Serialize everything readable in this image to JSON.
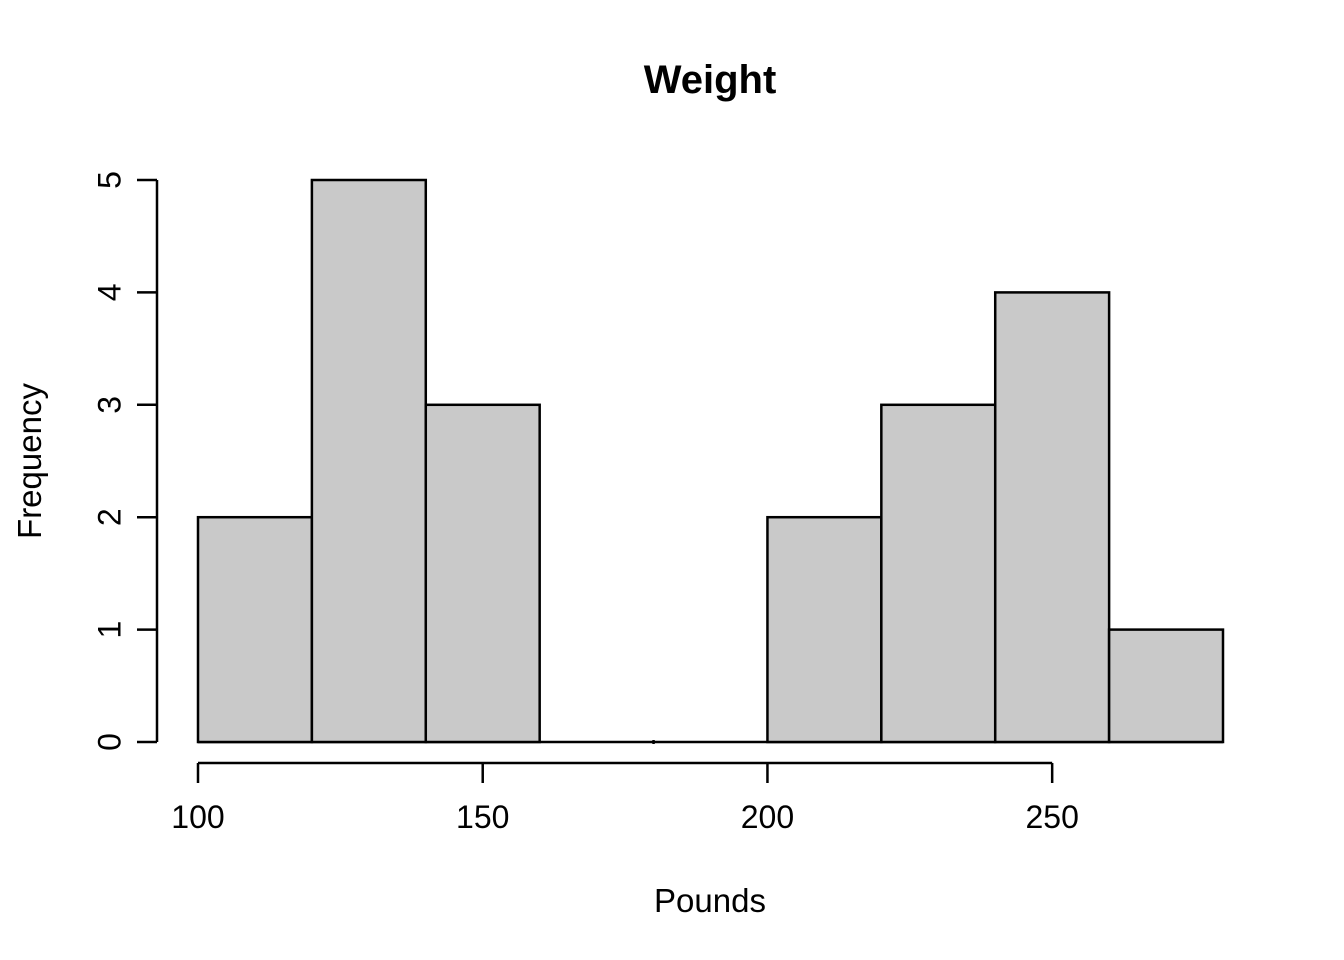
{
  "chart_data": {
    "type": "bar",
    "subtype": "histogram",
    "title": "Weight",
    "xlabel": "Pounds",
    "ylabel": "Frequency",
    "bin_edges": [
      100,
      120,
      140,
      160,
      180,
      200,
      220,
      240,
      260,
      280
    ],
    "counts": [
      2,
      5,
      3,
      0,
      0,
      2,
      3,
      4,
      1
    ],
    "x_ticks": [
      100,
      150,
      200,
      250
    ],
    "x_tick_labels": [
      "100",
      "150",
      "200",
      "250"
    ],
    "y_ticks": [
      0,
      1,
      2,
      3,
      4,
      5
    ],
    "y_tick_labels": [
      "0",
      "1",
      "2",
      "3",
      "4",
      "5"
    ],
    "xlim": [
      100,
      280
    ],
    "ylim": [
      0,
      5
    ],
    "grid": "off",
    "legend": "none",
    "bar_fill": "#C9C9C9",
    "bar_stroke": "#000000",
    "axis_color": "#000000",
    "background": "#ffffff"
  }
}
